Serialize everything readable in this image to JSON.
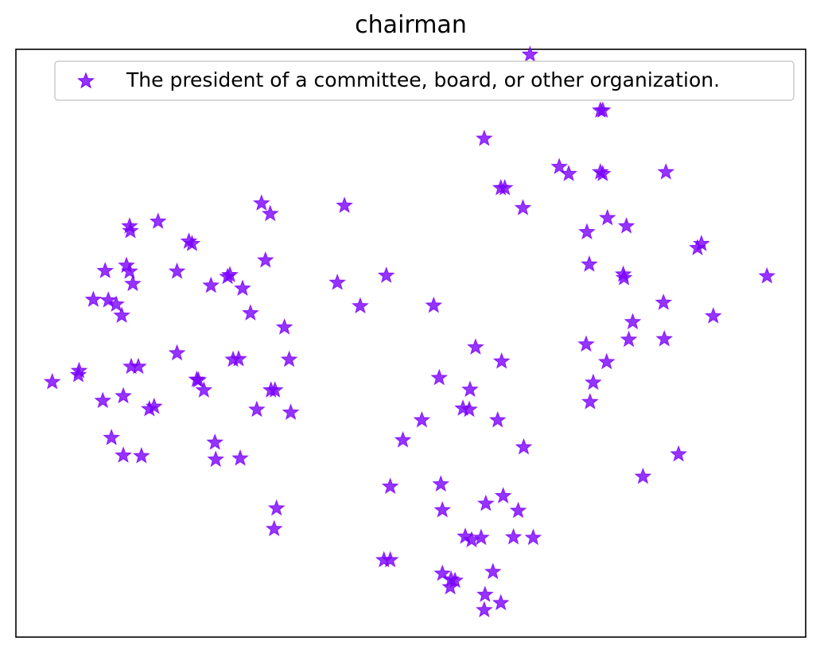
{
  "chart_data": {
    "type": "scatter",
    "title": "chairman",
    "xlabel": "",
    "ylabel": "",
    "xlim": [
      0,
      100
    ],
    "ylim": [
      0,
      100
    ],
    "grid": false,
    "ticks_visible": false,
    "legend": {
      "placement": "top-right",
      "entries": [
        "The president of a committee, board, or other organization."
      ]
    },
    "marker": "star",
    "color": "#7a00ff",
    "series": [
      {
        "name": "The president of a committee, board, or other organization.",
        "points": [
          [
            65.1,
            99.1
          ],
          [
            74.0,
            89.6
          ],
          [
            74.3,
            89.6
          ],
          [
            59.3,
            84.8
          ],
          [
            68.8,
            80.0
          ],
          [
            70.0,
            78.8
          ],
          [
            74.0,
            79.1
          ],
          [
            74.3,
            78.8
          ],
          [
            82.3,
            79.1
          ],
          [
            61.4,
            76.4
          ],
          [
            61.9,
            76.4
          ],
          [
            64.2,
            73.0
          ],
          [
            41.6,
            73.4
          ],
          [
            74.9,
            71.3
          ],
          [
            77.3,
            69.9
          ],
          [
            72.3,
            68.9
          ],
          [
            86.3,
            66.2
          ],
          [
            86.8,
            66.9
          ],
          [
            72.6,
            63.4
          ],
          [
            76.9,
            61.7
          ],
          [
            77.0,
            61.1
          ],
          [
            95.1,
            61.4
          ],
          [
            82.0,
            56.9
          ],
          [
            88.3,
            54.6
          ],
          [
            78.1,
            53.6
          ],
          [
            77.6,
            50.6
          ],
          [
            82.1,
            50.7
          ],
          [
            72.2,
            49.8
          ],
          [
            74.8,
            46.8
          ],
          [
            73.1,
            43.3
          ],
          [
            83.9,
            31.1
          ],
          [
            79.4,
            27.3
          ],
          [
            72.7,
            40.0
          ],
          [
            31.1,
            73.8
          ],
          [
            32.2,
            72.0
          ],
          [
            18.0,
            70.7
          ],
          [
            14.5,
            69.1
          ],
          [
            14.4,
            69.9
          ],
          [
            22.3,
            66.9
          ],
          [
            21.9,
            67.3
          ],
          [
            31.6,
            64.1
          ],
          [
            14.0,
            63.2
          ],
          [
            14.4,
            62.2
          ],
          [
            11.3,
            62.3
          ],
          [
            14.8,
            60.1
          ],
          [
            20.4,
            62.2
          ],
          [
            27.1,
            61.6
          ],
          [
            26.8,
            61.3
          ],
          [
            24.7,
            59.8
          ],
          [
            28.7,
            59.3
          ],
          [
            40.7,
            60.3
          ],
          [
            46.9,
            61.5
          ],
          [
            9.8,
            57.4
          ],
          [
            11.7,
            57.3
          ],
          [
            12.7,
            56.6
          ],
          [
            13.4,
            54.7
          ],
          [
            29.7,
            55.1
          ],
          [
            43.6,
            56.3
          ],
          [
            52.9,
            56.4
          ],
          [
            34.0,
            52.7
          ],
          [
            20.4,
            48.3
          ],
          [
            27.5,
            47.2
          ],
          [
            28.2,
            47.3
          ],
          [
            34.6,
            47.2
          ],
          [
            14.6,
            46.0
          ],
          [
            15.5,
            46.0
          ],
          [
            8.0,
            45.3
          ],
          [
            7.9,
            44.6
          ],
          [
            4.6,
            43.4
          ],
          [
            22.9,
            43.8
          ],
          [
            23.1,
            43.7
          ],
          [
            23.8,
            42.0
          ],
          [
            32.3,
            42.0
          ],
          [
            32.8,
            42.0
          ],
          [
            13.6,
            41.0
          ],
          [
            11.0,
            40.2
          ],
          [
            17.5,
            39.2
          ],
          [
            16.9,
            38.8
          ],
          [
            34.8,
            38.2
          ],
          [
            30.5,
            38.7
          ],
          [
            58.2,
            49.3
          ],
          [
            61.5,
            46.9
          ],
          [
            53.6,
            44.1
          ],
          [
            57.5,
            42.1
          ],
          [
            56.6,
            38.9
          ],
          [
            57.4,
            38.7
          ],
          [
            51.4,
            36.9
          ],
          [
            61.0,
            36.9
          ],
          [
            49.0,
            33.5
          ],
          [
            64.3,
            32.3
          ],
          [
            12.1,
            33.9
          ],
          [
            13.6,
            30.9
          ],
          [
            15.9,
            30.8
          ],
          [
            25.2,
            33.1
          ],
          [
            25.3,
            30.2
          ],
          [
            28.4,
            30.4
          ],
          [
            47.4,
            25.6
          ],
          [
            53.8,
            26.0
          ],
          [
            54.0,
            21.6
          ],
          [
            61.7,
            24.0
          ],
          [
            59.5,
            22.7
          ],
          [
            63.6,
            21.5
          ],
          [
            33.0,
            21.9
          ],
          [
            32.7,
            18.4
          ],
          [
            56.9,
            17.1
          ],
          [
            58.9,
            16.9
          ],
          [
            65.5,
            16.9
          ],
          [
            57.7,
            16.5
          ],
          [
            63.0,
            17.0
          ],
          [
            46.6,
            13.1
          ],
          [
            47.4,
            13.1
          ],
          [
            60.4,
            11.1
          ],
          [
            54.0,
            10.8
          ],
          [
            55.1,
            9.8
          ],
          [
            55.6,
            9.6
          ],
          [
            55.0,
            8.5
          ],
          [
            59.4,
            7.2
          ],
          [
            61.4,
            5.8
          ],
          [
            59.3,
            4.6
          ]
        ]
      }
    ]
  }
}
